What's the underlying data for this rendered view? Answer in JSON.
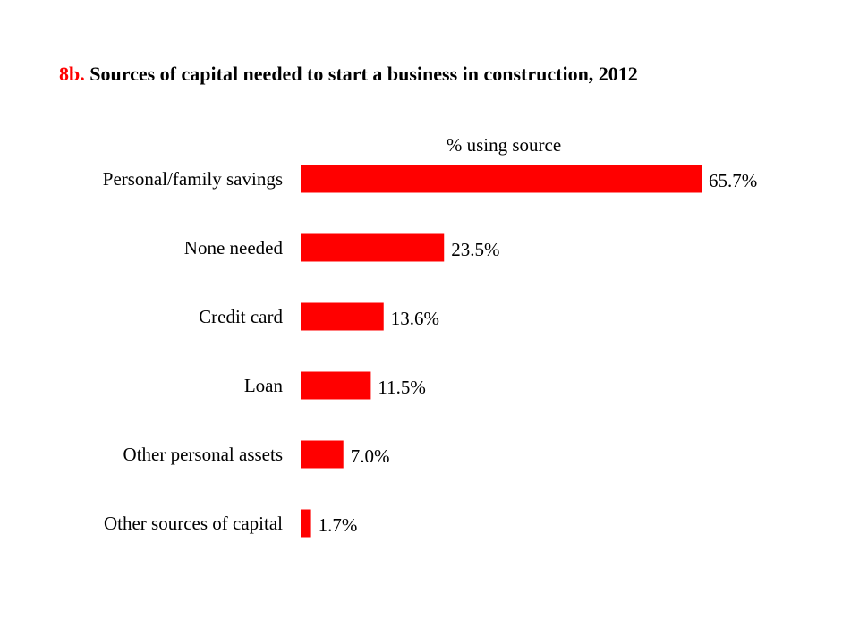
{
  "title": {
    "tag": "8b.",
    "text": "Sources of capital needed to start a business in construction, 2012"
  },
  "colors": {
    "bar": "#ff0000",
    "title_tag": "#ff0000"
  },
  "chart_data": {
    "type": "bar",
    "orientation": "horizontal",
    "title": "8b. Sources of capital needed to start a business in construction, 2012",
    "subtitle": "% using source",
    "xlabel": "",
    "ylabel": "",
    "unit": "%",
    "categories": [
      "Personal/family savings",
      "None needed",
      "Credit card",
      "Loan",
      "Other personal assets",
      "Other sources of capital"
    ],
    "values": [
      65.7,
      23.5,
      13.6,
      11.5,
      7.0,
      1.7
    ],
    "value_labels": [
      "65.7%",
      "23.5%",
      "13.6%",
      "11.5%",
      "7.0%",
      "1.7%"
    ],
    "xlim": [
      0,
      65.7
    ],
    "grid": false,
    "legend": "none"
  }
}
